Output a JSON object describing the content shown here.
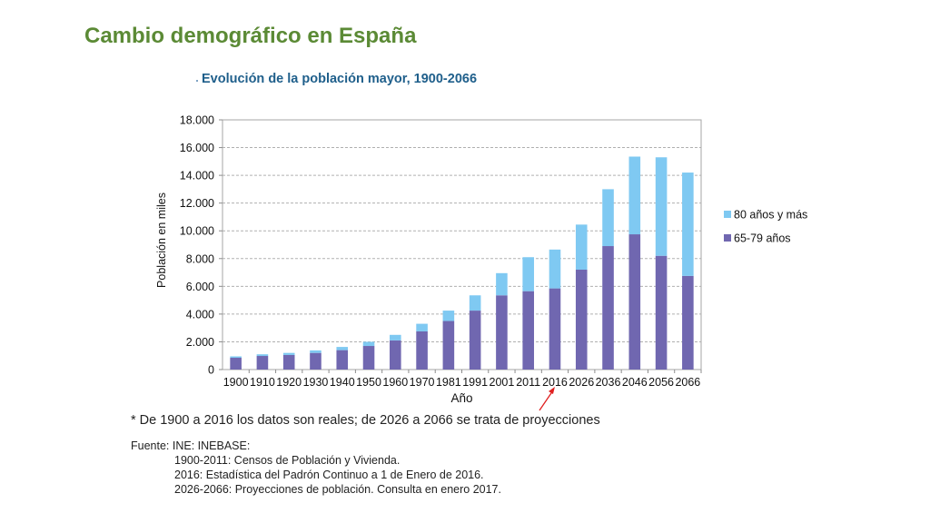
{
  "page": {
    "title": "Cambio demográfico en España"
  },
  "footnote": "* De 1900 a 2016 los datos son reales; de 2026 a 2066 se trata de proyecciones",
  "source": {
    "heading": "Fuente: INE: INEBASE:",
    "lines": [
      "1900-2011: Censos de Población y Vivienda.",
      "2016: Estadística del Padrón Continuo a 1 de Enero de 2016.",
      "2026-2066: Proyecciones de población. Consulta en enero 2017."
    ]
  },
  "chart_data": {
    "type": "bar",
    "stacked": true,
    "title": "Evolución de la población mayor, 1900-2066",
    "xlabel": "Año",
    "ylabel": "Población en miles",
    "ylim": [
      0,
      18000
    ],
    "yticks": [
      "0",
      "2.000",
      "4.000",
      "6.000",
      "8.000",
      "10.000",
      "12.000",
      "14.000",
      "16.000",
      "18.000"
    ],
    "grid": true,
    "legend_position": "right",
    "categories": [
      "1900",
      "1910",
      "1920",
      "1930",
      "1940",
      "1950",
      "1960",
      "1970",
      "1981",
      "1991",
      "2001",
      "2011",
      "2016",
      "2026",
      "2036",
      "2046",
      "2056",
      "2066"
    ],
    "series": [
      {
        "name": "65-79 años",
        "color": "#7067b0",
        "values": [
          850,
          980,
          1050,
          1200,
          1400,
          1700,
          2100,
          2750,
          3500,
          4250,
          5350,
          5650,
          5850,
          7200,
          8900,
          9750,
          8200,
          6750
        ]
      },
      {
        "name": "80 años y más",
        "color": "#7fc9f2",
        "values": [
          100,
          120,
          150,
          180,
          230,
          300,
          400,
          550,
          750,
          1100,
          1600,
          2450,
          2800,
          3250,
          4100,
          5600,
          7100,
          7450
        ]
      }
    ],
    "annotation": {
      "type": "arrow",
      "target_category": "2016",
      "color": "#e02020"
    }
  }
}
